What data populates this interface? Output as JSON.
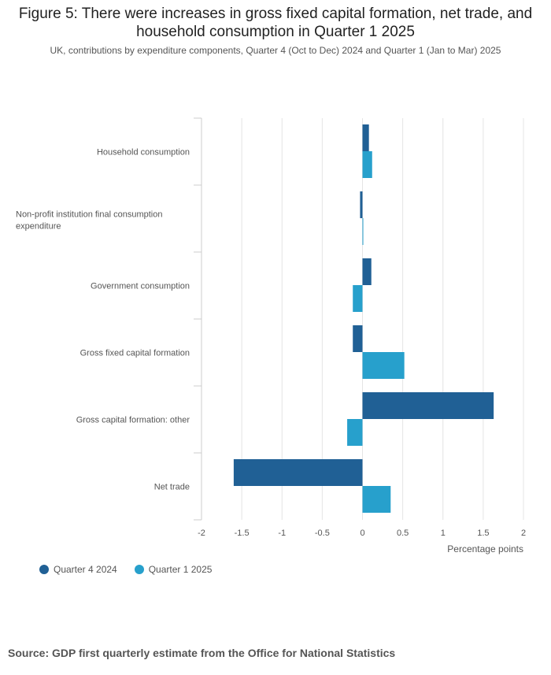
{
  "chart_data": {
    "type": "bar",
    "orientation": "horizontal",
    "title": "Figure 5: There were increases in gross fixed capital formation, net trade, and household consumption in Quarter 1 2025",
    "subtitle": "UK, contributions by expenditure components, Quarter 4 (Oct to Dec) 2024 and Quarter 1 (Jan to Mar) 2025",
    "categories": [
      "Household consumption",
      "Non-profit institution final consumption expenditure",
      "Government consumption",
      "Gross fixed capital formation",
      "Gross capital formation: other",
      "Net trade"
    ],
    "series": [
      {
        "name": "Quarter 4 2024",
        "color": "#206095",
        "values": [
          0.08,
          -0.03,
          0.11,
          -0.12,
          1.63,
          -1.6
        ]
      },
      {
        "name": "Quarter 1 2025",
        "color": "#27a0cc",
        "values": [
          0.12,
          0.01,
          -0.12,
          0.52,
          -0.19,
          0.35
        ]
      }
    ],
    "xlabel": "Percentage points",
    "xlim": [
      -2,
      2
    ],
    "xticks": [
      "-2",
      "-1.5",
      "-1",
      "-0.5",
      "0",
      "0.5",
      "1",
      "1.5",
      "2"
    ],
    "grid": true,
    "legend_position": "bottom-left"
  },
  "source": "Source: GDP first quarterly estimate from the Office for National Statistics"
}
